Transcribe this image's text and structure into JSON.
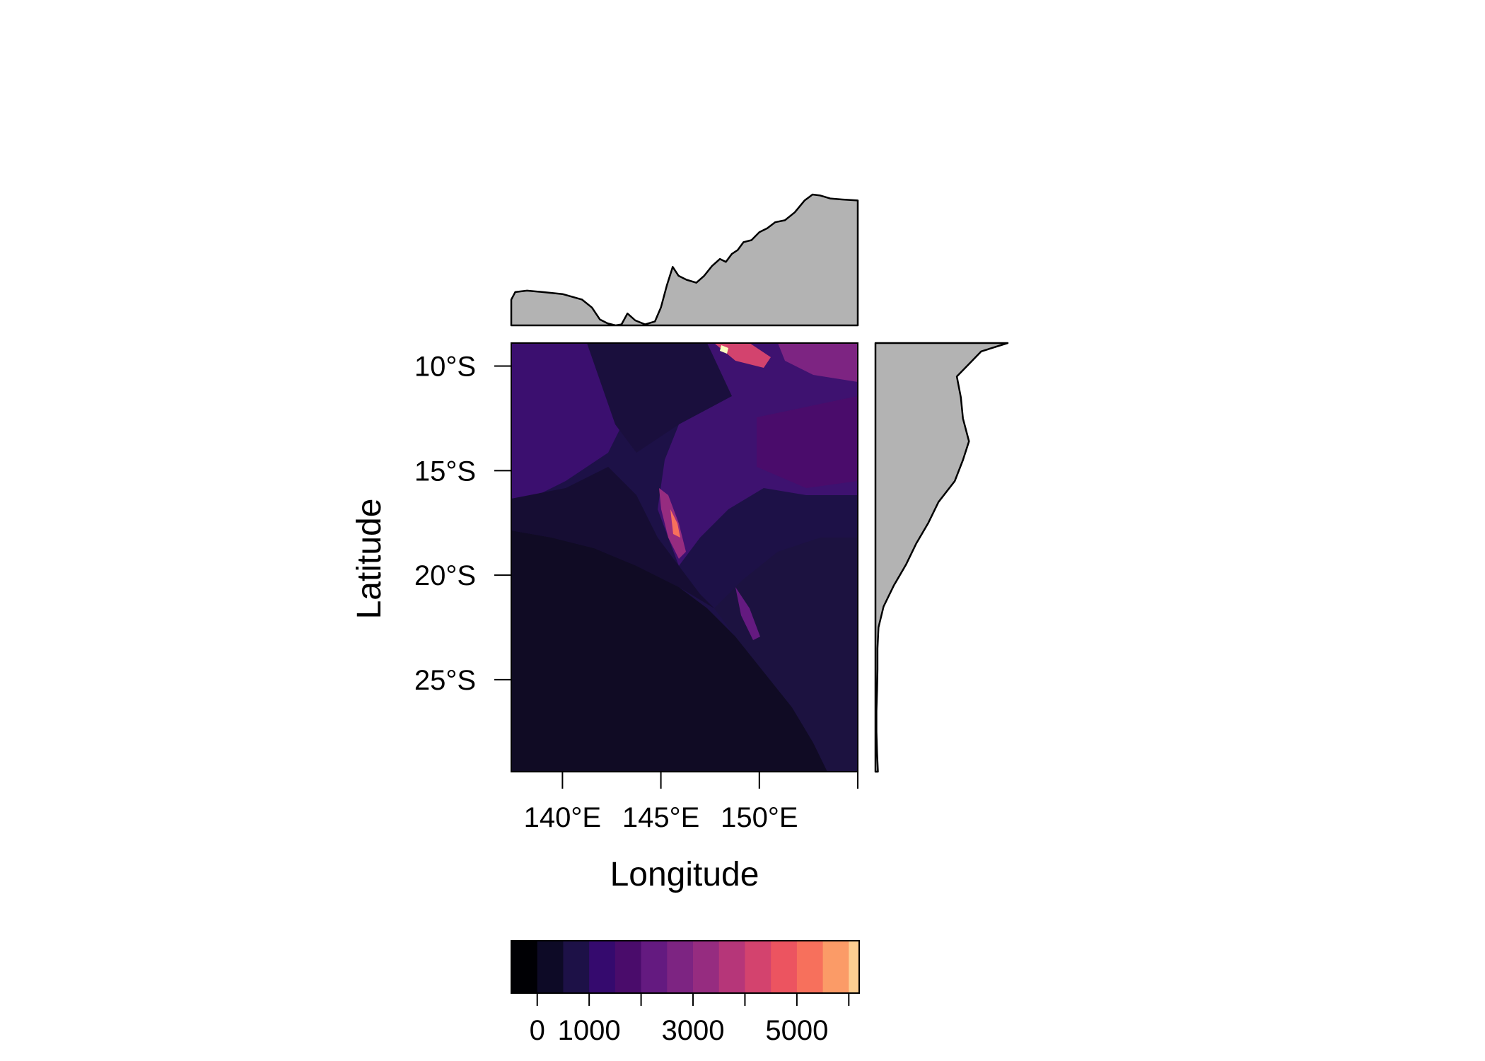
{
  "chart_data": {
    "type": "heatmap",
    "xlabel": "Longitude",
    "ylabel": "Latitude",
    "x_ticks": [
      {
        "value": 140,
        "label": "140°E"
      },
      {
        "value": 145,
        "label": "145°E"
      },
      {
        "value": 150,
        "label": "150°E"
      },
      {
        "value": 155,
        "label": ""
      }
    ],
    "y_ticks": [
      {
        "value": -10,
        "label": "10°S"
      },
      {
        "value": -15,
        "label": "15°S"
      },
      {
        "value": -20,
        "label": "20°S"
      },
      {
        "value": -25,
        "label": "25°S"
      }
    ],
    "xlim": [
      137.4,
      155.0
    ],
    "ylim": [
      -29.4,
      -8.9
    ],
    "colorbar": {
      "range": [
        -500,
        6200
      ],
      "breaks": [
        -500,
        0,
        500,
        1000,
        1500,
        2000,
        2500,
        3000,
        3500,
        4000,
        4500,
        5000,
        5500,
        6000,
        6200
      ],
      "colors": [
        "#000004",
        "#0d0a26",
        "#1d1147",
        "#350a6e",
        "#4a0c6b",
        "#641a80",
        "#7d2482",
        "#962c80",
        "#b63679",
        "#d3436e",
        "#ec5460",
        "#f7705c",
        "#fb9b67",
        "#fdcf92",
        "#fcfdbf"
      ],
      "ticks": [
        {
          "value": 0,
          "label": "0"
        },
        {
          "value": 1000,
          "label": "1000"
        },
        {
          "value": 2000,
          "label": ""
        },
        {
          "value": 3000,
          "label": "3000"
        },
        {
          "value": 4000,
          "label": ""
        },
        {
          "value": 5000,
          "label": "5000"
        },
        {
          "value": 6000,
          "label": ""
        }
      ]
    },
    "top_marginal": {
      "description_type": "mean value by longitude",
      "points": [
        [
          137.4,
          130
        ],
        [
          137.6,
          168
        ],
        [
          138.2,
          175
        ],
        [
          139.0,
          168
        ],
        [
          140.0,
          158
        ],
        [
          141.0,
          130
        ],
        [
          141.5,
          90
        ],
        [
          141.9,
          30
        ],
        [
          142.3,
          10
        ],
        [
          142.7,
          0
        ],
        [
          143.0,
          5
        ],
        [
          143.3,
          60
        ],
        [
          143.7,
          25
        ],
        [
          144.2,
          5
        ],
        [
          144.7,
          20
        ],
        [
          145.0,
          90
        ],
        [
          145.3,
          200
        ],
        [
          145.6,
          295
        ],
        [
          145.9,
          250
        ],
        [
          146.3,
          230
        ],
        [
          146.8,
          215
        ],
        [
          147.2,
          250
        ],
        [
          147.6,
          300
        ],
        [
          148.0,
          335
        ],
        [
          148.3,
          320
        ],
        [
          148.6,
          360
        ],
        [
          148.9,
          380
        ],
        [
          149.2,
          420
        ],
        [
          149.6,
          430
        ],
        [
          150.0,
          470
        ],
        [
          150.4,
          490
        ],
        [
          150.8,
          520
        ],
        [
          151.3,
          530
        ],
        [
          151.8,
          570
        ],
        [
          152.3,
          630
        ],
        [
          152.7,
          660
        ],
        [
          153.1,
          655
        ],
        [
          153.6,
          640
        ],
        [
          154.2,
          635
        ],
        [
          155.0,
          630
        ]
      ]
    },
    "right_marginal": {
      "description_type": "mean value by latitude",
      "points": [
        [
          -8.9,
          650
        ],
        [
          -9.3,
          520
        ],
        [
          -9.8,
          470
        ],
        [
          -10.5,
          400
        ],
        [
          -11.5,
          420
        ],
        [
          -12.5,
          430
        ],
        [
          -13.6,
          460
        ],
        [
          -14.5,
          430
        ],
        [
          -15.5,
          390
        ],
        [
          -16.5,
          310
        ],
        [
          -17.5,
          260
        ],
        [
          -18.5,
          200
        ],
        [
          -19.5,
          150
        ],
        [
          -20.5,
          90
        ],
        [
          -21.5,
          40
        ],
        [
          -22.5,
          15
        ],
        [
          -23.5,
          10
        ],
        [
          -24.5,
          10
        ],
        [
          -25.5,
          8
        ],
        [
          -26.5,
          5
        ],
        [
          -27.5,
          5
        ],
        [
          -28.5,
          8
        ],
        [
          -29.4,
          12
        ]
      ]
    }
  }
}
